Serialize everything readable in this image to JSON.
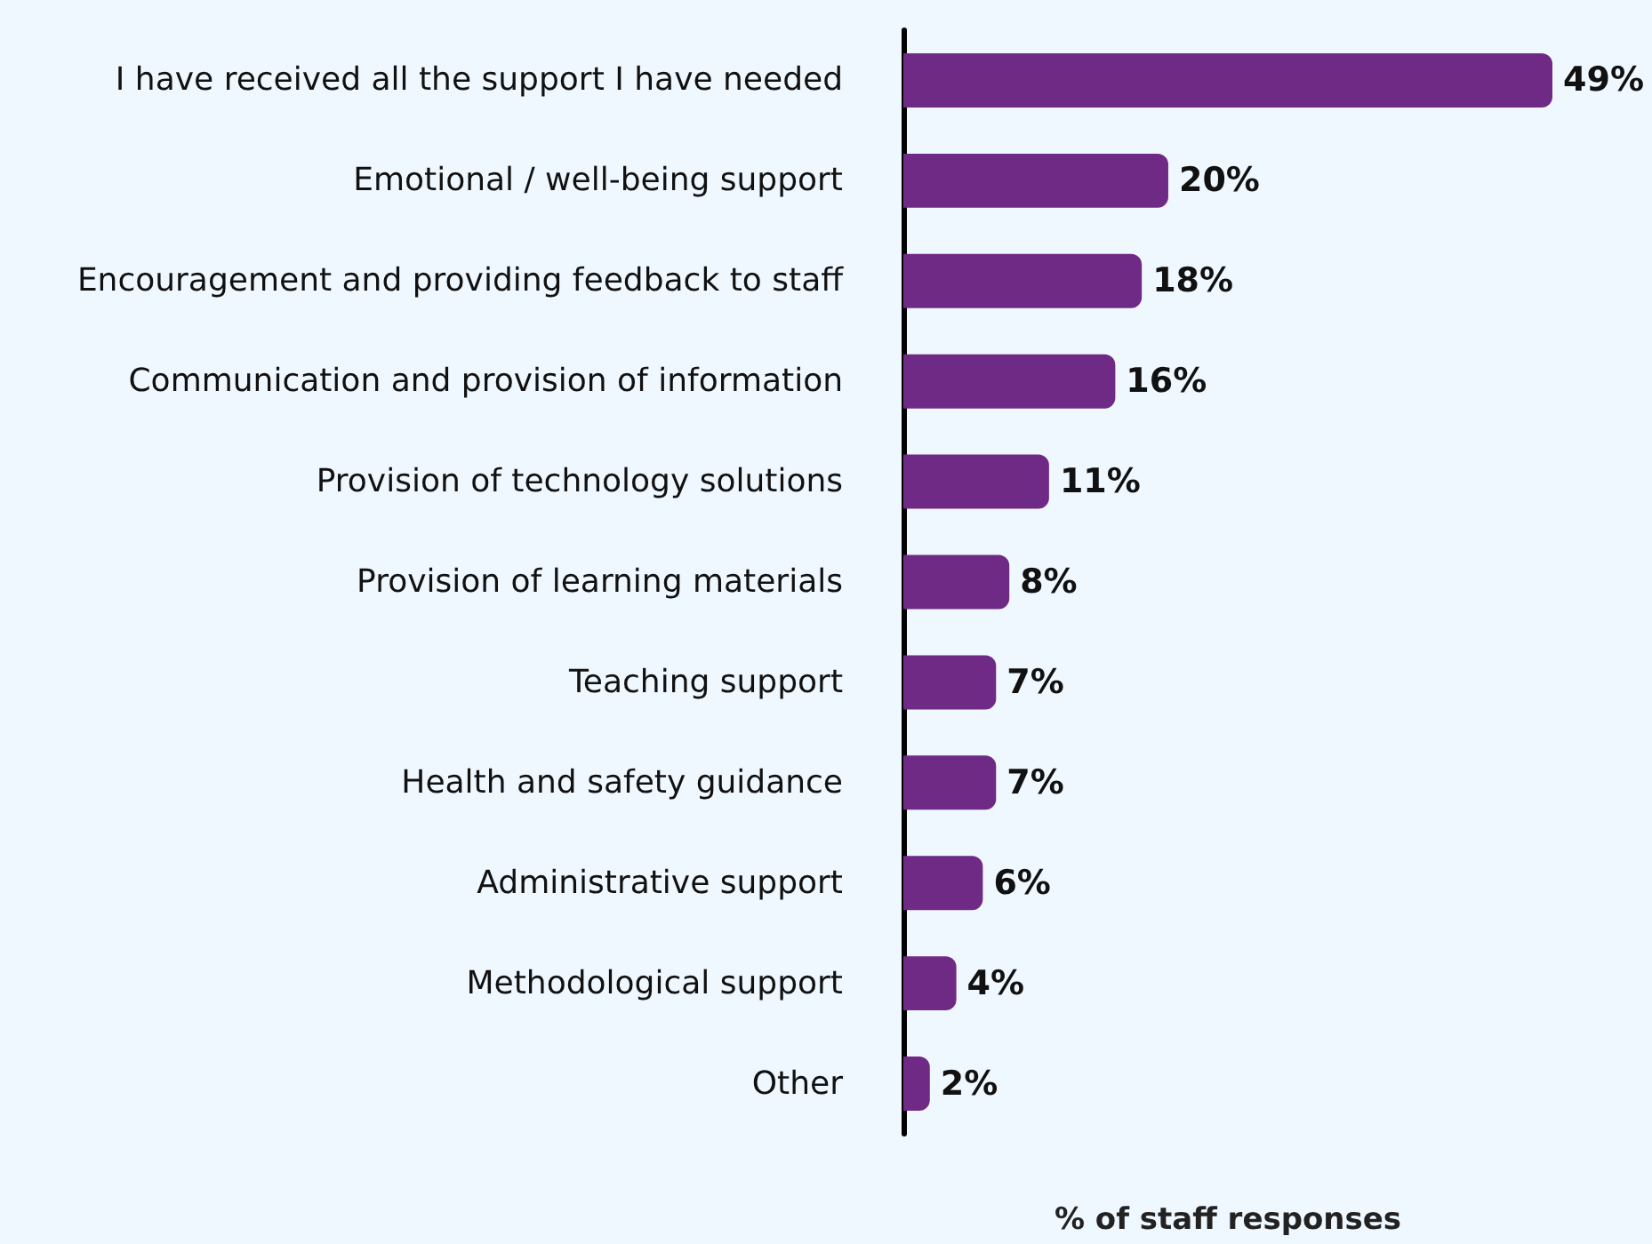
{
  "chart_data": {
    "type": "bar",
    "orientation": "horizontal",
    "xlabel": "% of staff responses",
    "categories": [
      "I have received all the support I have needed",
      "Emotional / well-being support",
      "Encouragement and providing feedback to staff",
      "Communication and provision of information",
      "Provision of technology solutions",
      "Provision of learning materials",
      "Teaching support",
      "Health and safety guidance",
      "Administrative support",
      "Methodological support",
      "Other"
    ],
    "values": [
      49,
      20,
      18,
      16,
      11,
      8,
      7,
      7,
      6,
      4,
      2
    ],
    "value_labels": [
      "49%",
      "20%",
      "18%",
      "16%",
      "11%",
      "8%",
      "7%",
      "7%",
      "6%",
      "4%",
      "2%"
    ],
    "color": "#6f2a86"
  }
}
